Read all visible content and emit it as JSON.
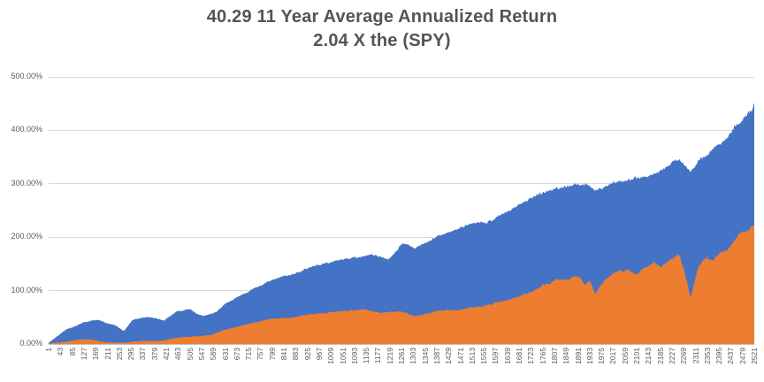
{
  "title": {
    "line1": "40.29 11 Year Average Annualized Return",
    "line2": "2.04 X the (SPY)",
    "color": "#545454"
  },
  "chart_data": {
    "type": "area",
    "title": "40.29 11 Year Average Annualized Return 2.04 X the (SPY)",
    "legend_position": "none",
    "x_axis": {
      "min": 1,
      "max": 2521,
      "tick_step": 42,
      "ticks": [
        1,
        43,
        85,
        127,
        169,
        211,
        253,
        295,
        337,
        379,
        421,
        463,
        505,
        547,
        589,
        631,
        673,
        715,
        757,
        799,
        841,
        883,
        925,
        967,
        1009,
        1051,
        1093,
        1135,
        1177,
        1219,
        1261,
        1303,
        1345,
        1387,
        1429,
        1471,
        1513,
        1555,
        1597,
        1639,
        1681,
        1723,
        1765,
        1807,
        1849,
        1891,
        1933,
        1975,
        2017,
        2059,
        2101,
        2143,
        2185,
        2227,
        2269,
        2311,
        2353,
        2395,
        2437,
        2479,
        2521
      ]
    },
    "y_axis": {
      "min_pct": 0,
      "max_pct": 500,
      "tick_labels": [
        "0.00%",
        "100.00%",
        "200.00%",
        "300.00%",
        "400.00%",
        "500.00%"
      ],
      "grid": true
    },
    "colors": {
      "blue_series": "#4472C4",
      "orange_series": "#ED7D31",
      "gridline": "#d9d9d9",
      "axis_line": "#bfbfbf",
      "tick_text": "#595959"
    },
    "series": [
      {
        "id": "blue-strategy-cumulative-return",
        "color": "#4472C4",
        "unit": "percent",
        "anchors": [
          [
            1,
            2
          ],
          [
            30,
            14
          ],
          [
            64,
            28
          ],
          [
            100,
            34
          ],
          [
            127,
            40
          ],
          [
            175,
            45
          ],
          [
            238,
            35
          ],
          [
            270,
            24
          ],
          [
            301,
            45
          ],
          [
            348,
            50
          ],
          [
            380,
            48
          ],
          [
            412,
            44
          ],
          [
            459,
            61
          ],
          [
            506,
            65
          ],
          [
            532,
            56
          ],
          [
            554,
            52
          ],
          [
            601,
            60
          ],
          [
            633,
            75
          ],
          [
            680,
            90
          ],
          [
            775,
            114
          ],
          [
            869,
            131
          ],
          [
            964,
            148
          ],
          [
            1059,
            159
          ],
          [
            1154,
            167
          ],
          [
            1217,
            160
          ],
          [
            1264,
            190
          ],
          [
            1311,
            178
          ],
          [
            1374,
            197
          ],
          [
            1469,
            217
          ],
          [
            1564,
            230
          ],
          [
            1627,
            244
          ],
          [
            1659,
            250
          ],
          [
            1690,
            265
          ],
          [
            1753,
            284
          ],
          [
            1832,
            293
          ],
          [
            1880,
            300
          ],
          [
            1927,
            296
          ],
          [
            1953,
            288
          ],
          [
            2006,
            300
          ],
          [
            2069,
            308
          ],
          [
            2133,
            315
          ],
          [
            2196,
            327
          ],
          [
            2253,
            348
          ],
          [
            2294,
            320
          ],
          [
            2322,
            340
          ],
          [
            2354,
            355
          ],
          [
            2385,
            370
          ],
          [
            2417,
            385
          ],
          [
            2449,
            408
          ],
          [
            2480,
            426
          ],
          [
            2505,
            438
          ],
          [
            2513,
            432
          ],
          [
            2521,
            452
          ]
        ]
      },
      {
        "id": "orange-spy-cumulative-return",
        "color": "#ED7D31",
        "unit": "percent",
        "anchors": [
          [
            1,
            1
          ],
          [
            64,
            5
          ],
          [
            100,
            8
          ],
          [
            143,
            9
          ],
          [
            206,
            3
          ],
          [
            270,
            2
          ],
          [
            332,
            6
          ],
          [
            396,
            5
          ],
          [
            459,
            12
          ],
          [
            522,
            14
          ],
          [
            585,
            17
          ],
          [
            633,
            28
          ],
          [
            680,
            33
          ],
          [
            775,
            45
          ],
          [
            869,
            50
          ],
          [
            932,
            55
          ],
          [
            996,
            57
          ],
          [
            1059,
            62
          ],
          [
            1122,
            65
          ],
          [
            1185,
            58
          ],
          [
            1264,
            60
          ],
          [
            1311,
            52
          ],
          [
            1374,
            60
          ],
          [
            1469,
            65
          ],
          [
            1564,
            73
          ],
          [
            1659,
            85
          ],
          [
            1722,
            98
          ],
          [
            1769,
            112
          ],
          [
            1801,
            118
          ],
          [
            1848,
            123
          ],
          [
            1896,
            127
          ],
          [
            1918,
            112
          ],
          [
            1934,
            118
          ],
          [
            1953,
            93
          ],
          [
            1975,
            112
          ],
          [
            2006,
            128
          ],
          [
            2038,
            134
          ],
          [
            2069,
            139
          ],
          [
            2101,
            131
          ],
          [
            2133,
            144
          ],
          [
            2164,
            151
          ],
          [
            2186,
            143
          ],
          [
            2212,
            156
          ],
          [
            2253,
            168
          ],
          [
            2275,
            131
          ],
          [
            2294,
            88
          ],
          [
            2322,
            148
          ],
          [
            2354,
            164
          ],
          [
            2370,
            155
          ],
          [
            2402,
            175
          ],
          [
            2433,
            184
          ],
          [
            2465,
            205
          ],
          [
            2496,
            210
          ],
          [
            2521,
            222
          ]
        ]
      }
    ]
  }
}
